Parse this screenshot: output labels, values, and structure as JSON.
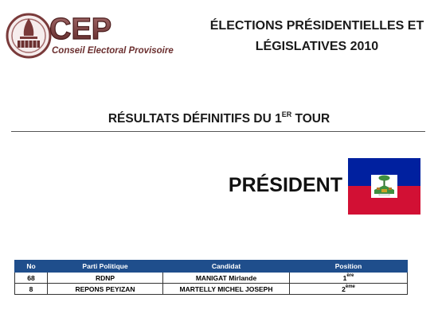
{
  "logo": {
    "acronym": "CEP",
    "name": "Conseil Electoral Provisoire"
  },
  "header": {
    "title_line1": "ÉLECTIONS PRÉSIDENTIELLES ET",
    "title_line2": "LÉGISLATIVES 2010"
  },
  "subtitle": {
    "text": "RÉSULTATS DÉFINITIFS  DU 1",
    "superscript": "ER",
    "tail": " TOUR"
  },
  "office": {
    "label": "PRÉSIDENT",
    "flag_icon": "haiti-flag-icon",
    "flag_colors": {
      "top": "#00209f",
      "bottom": "#d21034",
      "panel": "#ffffff"
    }
  },
  "results_table": {
    "header_color": "#1f4e8c",
    "columns": [
      "No",
      "Parti Politique",
      "Candidat",
      "Position"
    ],
    "rows": [
      {
        "no": "68",
        "party": "RDNP",
        "candidate": "MANIGAT Mirlande",
        "position": "1",
        "position_sup": "ère"
      },
      {
        "no": "8",
        "party": "REPONS PEYIZAN",
        "candidate": "MARTELLY MICHEL JOSEPH",
        "position": "2",
        "position_sup": "ème"
      }
    ]
  }
}
